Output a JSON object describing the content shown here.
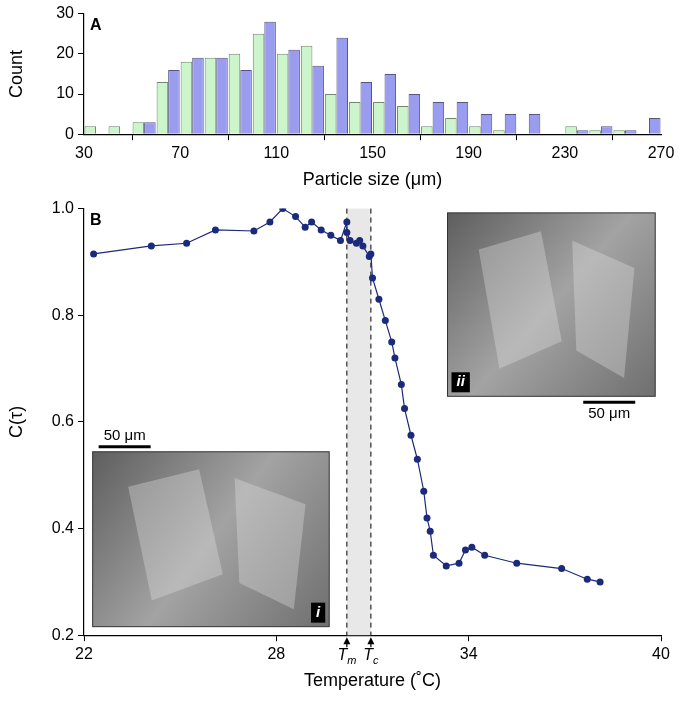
{
  "chart_data": [
    {
      "panel": "A",
      "type": "histogram",
      "x_label": "Particle size (μm)",
      "y_label": "Count",
      "bins": [
        30,
        40,
        50,
        60,
        70,
        80,
        90,
        100,
        110,
        120,
        130,
        140,
        150,
        160,
        170,
        180,
        190,
        200,
        210,
        220,
        230,
        240,
        250,
        260,
        270
      ],
      "series": [
        {
          "color": "#ccf5cc",
          "values": [
            2,
            2,
            3,
            13,
            18,
            19,
            20,
            25,
            20,
            22,
            10,
            8,
            8,
            7,
            2,
            4,
            2,
            1,
            0,
            0,
            2,
            1,
            1,
            0
          ]
        },
        {
          "color": "#9a9cf0",
          "values": [
            0,
            0,
            3,
            16,
            19,
            19,
            16,
            28,
            21,
            17,
            24,
            13,
            15,
            10,
            8,
            8,
            5,
            5,
            5,
            0,
            1,
            2,
            1,
            4
          ]
        }
      ],
      "xlim": [
        30,
        270
      ],
      "xticks": [
        30,
        70,
        110,
        150,
        190,
        230,
        270
      ],
      "ylim": [
        0,
        30
      ],
      "yticks": [
        0,
        10,
        20,
        30
      ],
      "grid": false
    },
    {
      "panel": "B",
      "type": "line",
      "marker": "circle",
      "color": "#1b2a7a",
      "x_label": "Temperature (˚C)",
      "y_label": "C(τ)",
      "x": [
        22.3,
        24.1,
        25.2,
        26.1,
        27.3,
        27.8,
        28.2,
        28.6,
        28.9,
        29.1,
        29.4,
        29.7,
        30.0,
        30.2,
        30.2,
        30.3,
        30.5,
        30.6,
        30.7,
        30.9,
        30.95,
        31.0,
        31.2,
        31.4,
        31.6,
        31.7,
        31.9,
        32.0,
        32.2,
        32.4,
        32.6,
        32.7,
        32.8,
        32.9,
        33.3,
        33.7,
        33.9,
        34.1,
        34.5,
        35.5,
        36.9,
        37.7,
        38.1
      ],
      "values": [
        0.915,
        0.93,
        0.935,
        0.96,
        0.958,
        0.975,
        1.0,
        0.985,
        0.965,
        0.975,
        0.96,
        0.95,
        0.94,
        0.975,
        0.955,
        0.94,
        0.935,
        0.94,
        0.93,
        0.91,
        0.915,
        0.87,
        0.83,
        0.79,
        0.75,
        0.72,
        0.67,
        0.625,
        0.575,
        0.53,
        0.47,
        0.42,
        0.395,
        0.35,
        0.33,
        0.335,
        0.36,
        0.365,
        0.35,
        0.335,
        0.325,
        0.305,
        0.3
      ],
      "xlim": [
        22,
        40
      ],
      "xticks": [
        22,
        28,
        34,
        40
      ],
      "ylim": [
        0.2,
        1.0
      ],
      "yticks": [
        0.2,
        0.4,
        0.6,
        0.8,
        {
          "value": 1.0,
          "label": "1.0"
        }
      ],
      "annotations": [
        {
          "text": "Tm",
          "x": 30.2
        },
        {
          "text": "Tc",
          "x": 30.95
        }
      ],
      "insets": [
        {
          "label": "i",
          "scale_bar": "50 μm"
        },
        {
          "label": "ii",
          "scale_bar": "50 μm"
        }
      ],
      "grid": false
    }
  ]
}
